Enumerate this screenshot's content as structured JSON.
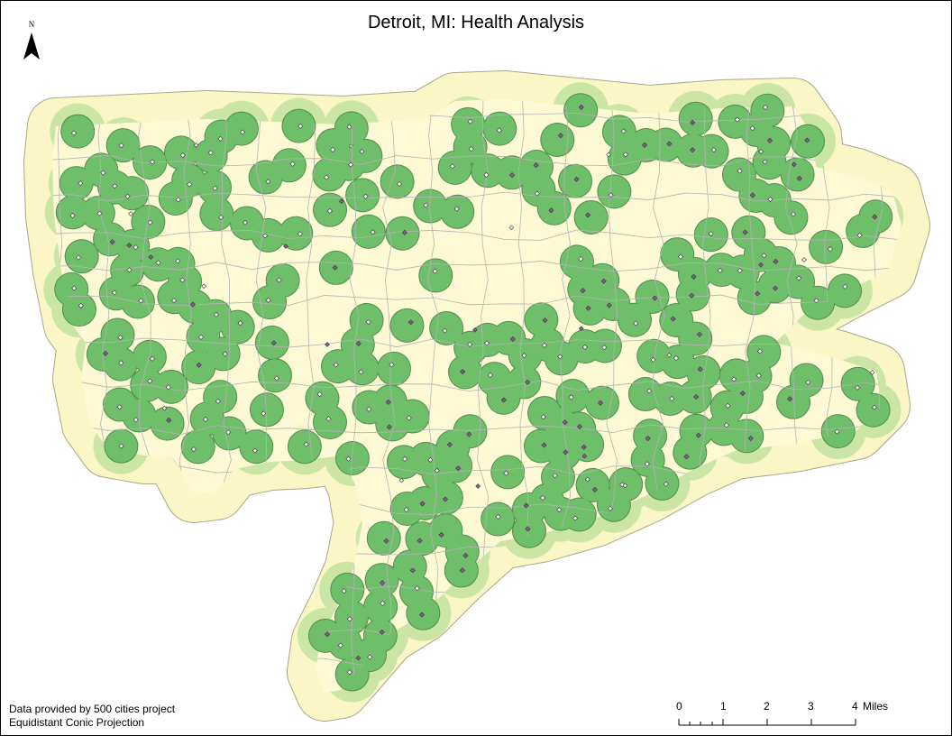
{
  "title": "Detroit, MI: Health Analysis",
  "north_arrow": {
    "letter": "N",
    "icon": "north-arrow-icon"
  },
  "credits": {
    "source": "Data provided by 500 cities project",
    "projection": "Equidistant Conic Projection"
  },
  "scalebar": {
    "ticks": [
      "0",
      "1",
      "2",
      "3",
      "4"
    ],
    "unit": "Miles"
  },
  "colors": {
    "outer_buffer": "#fbf6c6",
    "middle_buffer": "#cbe6a4",
    "inner_buffer": "#6ebe6a",
    "buffer_outline": "#4f8f4c",
    "tract_lines": "#b4b4b4",
    "point_white": "#ffffff",
    "point_purple": "#8c5a96"
  }
}
